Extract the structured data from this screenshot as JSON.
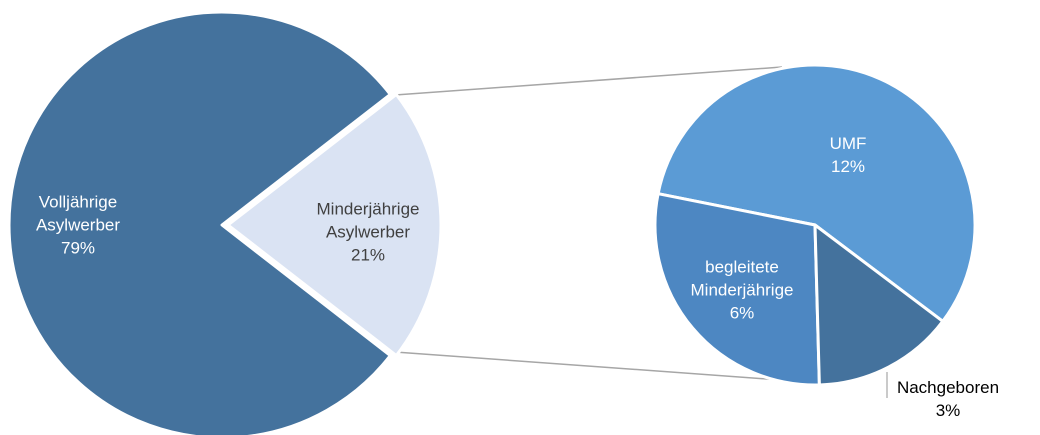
{
  "chart_data": [
    {
      "type": "pie",
      "categories": [
        "Volljährige Asylwerber",
        "Minderjährige Asylwerber"
      ],
      "values": [
        79,
        21
      ],
      "value_labels": [
        "79%",
        "21%"
      ],
      "colors": [
        "#44729d",
        "#dae3f3"
      ]
    },
    {
      "type": "pie",
      "categories": [
        "UMF",
        "begleitete Minderjährige",
        "Nachgeboren"
      ],
      "values": [
        12,
        6,
        3
      ],
      "value_labels": [
        "12%",
        "6%",
        "3%"
      ],
      "colors": [
        "#5b9bd5",
        "#4d87c2",
        "#44729d"
      ]
    }
  ]
}
